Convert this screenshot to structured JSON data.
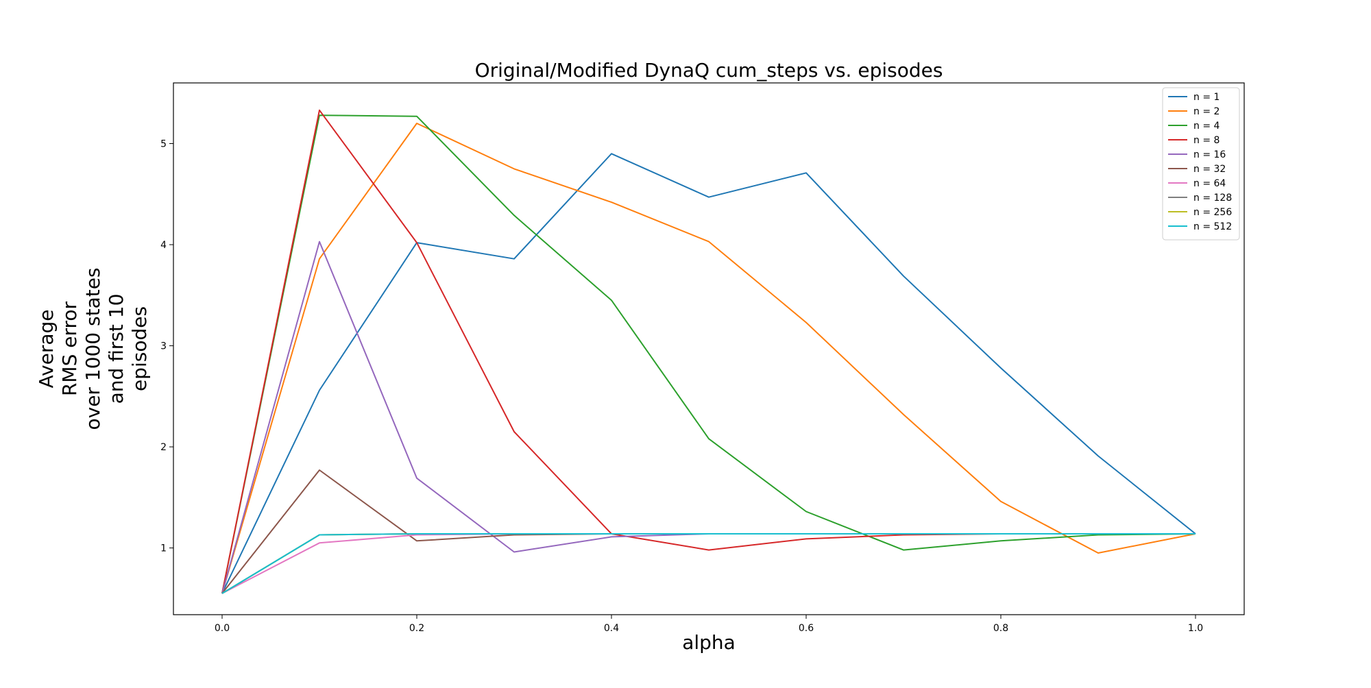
{
  "chart_data": {
    "type": "line",
    "title": "Original/Modified DynaQ cum_steps vs. episodes",
    "xlabel": "alpha",
    "ylabel_lines": [
      "Average",
      "RMS error",
      "over 1000 states",
      "and first 10",
      "episodes"
    ],
    "xlim": [
      -0.05,
      1.05
    ],
    "ylim": [
      0.34,
      5.6
    ],
    "xticks": [
      0.0,
      0.2,
      0.4,
      0.6,
      0.8,
      1.0
    ],
    "xtick_labels": [
      "0.0",
      "0.2",
      "0.4",
      "0.6",
      "0.8",
      "1.0"
    ],
    "yticks": [
      1,
      2,
      3,
      4,
      5
    ],
    "ytick_labels": [
      "1",
      "2",
      "3",
      "4",
      "5"
    ],
    "grid": false,
    "legend_position": "top-right",
    "x": [
      0.0,
      0.1,
      0.2,
      0.3,
      0.4,
      0.5,
      0.6,
      0.7,
      0.8,
      0.9,
      1.0
    ],
    "series": [
      {
        "name": "n = 1",
        "color": "#1f77b4",
        "values": [
          0.55,
          2.56,
          4.02,
          3.86,
          4.9,
          4.47,
          4.71,
          3.69,
          2.78,
          1.91,
          1.14
        ]
      },
      {
        "name": "n = 2",
        "color": "#ff7f0e",
        "values": [
          0.55,
          3.86,
          5.2,
          4.75,
          4.42,
          4.03,
          3.23,
          2.32,
          1.46,
          0.95,
          1.14
        ]
      },
      {
        "name": "n = 4",
        "color": "#2ca02c",
        "values": [
          0.55,
          5.28,
          5.27,
          4.29,
          3.45,
          2.08,
          1.36,
          0.98,
          1.07,
          1.13,
          1.14
        ]
      },
      {
        "name": "n = 8",
        "color": "#d62728",
        "values": [
          0.55,
          5.33,
          4.02,
          2.15,
          1.14,
          0.98,
          1.09,
          1.13,
          1.14,
          1.14,
          1.14
        ]
      },
      {
        "name": "n = 16",
        "color": "#9467bd",
        "values": [
          0.55,
          4.03,
          1.69,
          0.96,
          1.11,
          1.14,
          1.14,
          1.14,
          1.14,
          1.14,
          1.14
        ]
      },
      {
        "name": "n = 32",
        "color": "#8c564b",
        "values": [
          0.55,
          1.77,
          1.07,
          1.13,
          1.14,
          1.14,
          1.14,
          1.14,
          1.14,
          1.14,
          1.14
        ]
      },
      {
        "name": "n = 64",
        "color": "#e377c2",
        "values": [
          0.55,
          1.05,
          1.13,
          1.14,
          1.14,
          1.14,
          1.14,
          1.14,
          1.14,
          1.14,
          1.14
        ]
      },
      {
        "name": "n = 128",
        "color": "#7f7f7f",
        "values": [
          0.55,
          1.13,
          1.14,
          1.14,
          1.14,
          1.14,
          1.14,
          1.14,
          1.14,
          1.14,
          1.14
        ]
      },
      {
        "name": "n = 256",
        "color": "#bcbd22",
        "values": [
          0.55,
          1.13,
          1.14,
          1.14,
          1.14,
          1.14,
          1.14,
          1.14,
          1.14,
          1.14,
          1.14
        ]
      },
      {
        "name": "n = 512",
        "color": "#17becf",
        "values": [
          0.55,
          1.13,
          1.14,
          1.14,
          1.14,
          1.14,
          1.14,
          1.14,
          1.14,
          1.14,
          1.14
        ]
      }
    ]
  }
}
